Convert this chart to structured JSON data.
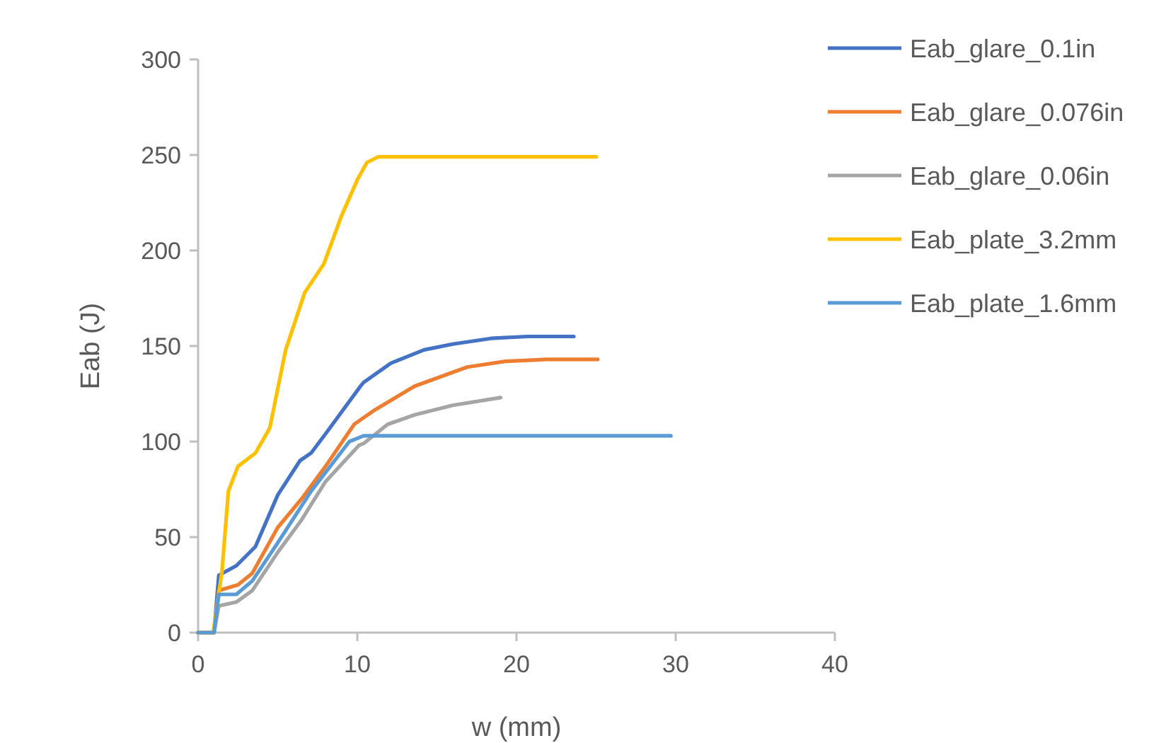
{
  "chart_data": {
    "type": "line",
    "xlabel": "w (mm)",
    "ylabel": "Eab (J)",
    "xlim": [
      0,
      40
    ],
    "ylim": [
      0,
      300
    ],
    "xticks": [
      0,
      10,
      20,
      30,
      40
    ],
    "yticks": [
      0,
      50,
      100,
      150,
      200,
      250,
      300
    ],
    "grid": false,
    "legend": "right",
    "marker": "none",
    "line_style": "solid",
    "series": [
      {
        "name": "Eab_glare_0.1in",
        "color": "#4472c4",
        "x": [
          0,
          1.0,
          1.3,
          2.4,
          3.6,
          5.0,
          6.4,
          7.1,
          8.0,
          10.2,
          10.4,
          12.1,
          14.2,
          16,
          18.4,
          20.7,
          23.6
        ],
        "values": [
          0,
          0,
          30,
          35,
          45,
          72,
          90,
          94,
          104,
          129,
          131,
          141,
          148,
          151,
          154,
          155,
          155
        ]
      },
      {
        "name": "Eab_glare_0.076in",
        "color": "#ed7d31",
        "x": [
          0,
          1.0,
          1.3,
          2.5,
          3.4,
          5.0,
          6.5,
          8.0,
          9.8,
          11,
          13.6,
          16.9,
          19.3,
          21.9,
          25.1
        ],
        "values": [
          0,
          0,
          22,
          25,
          31,
          55,
          70,
          87,
          109,
          116,
          129,
          139,
          142,
          143,
          143
        ]
      },
      {
        "name": "Eab_glare_0.06in",
        "color": "#a5a5a5",
        "x": [
          0,
          1.0,
          1.3,
          2.4,
          3.4,
          5.0,
          6.5,
          8.0,
          10.1,
          10.4,
          11.9,
          13.6,
          16,
          19
        ],
        "values": [
          0,
          0,
          14,
          16,
          22,
          42,
          59,
          79,
          98,
          99,
          109,
          114,
          119,
          123
        ]
      },
      {
        "name": "Eab_plate_3.2mm",
        "color": "#ffc000",
        "x": [
          0,
          0.95,
          1.5,
          1.9,
          2.5,
          3.6,
          4.5,
          5.5,
          6.7,
          7.9,
          9,
          10,
          10.6,
          11.3,
          25
        ],
        "values": [
          0,
          0,
          32,
          74,
          87,
          94,
          107,
          148,
          178,
          193,
          218,
          237,
          246,
          249,
          249
        ]
      },
      {
        "name": "Eab_plate_1.6mm",
        "color": "#5b9bd5",
        "x": [
          0,
          1.0,
          1.3,
          2.4,
          3.4,
          5.0,
          7.1,
          9.5,
          10.4,
          29.7
        ],
        "values": [
          0,
          0,
          20,
          20,
          27,
          47,
          74,
          100,
          103,
          103
        ]
      }
    ]
  }
}
